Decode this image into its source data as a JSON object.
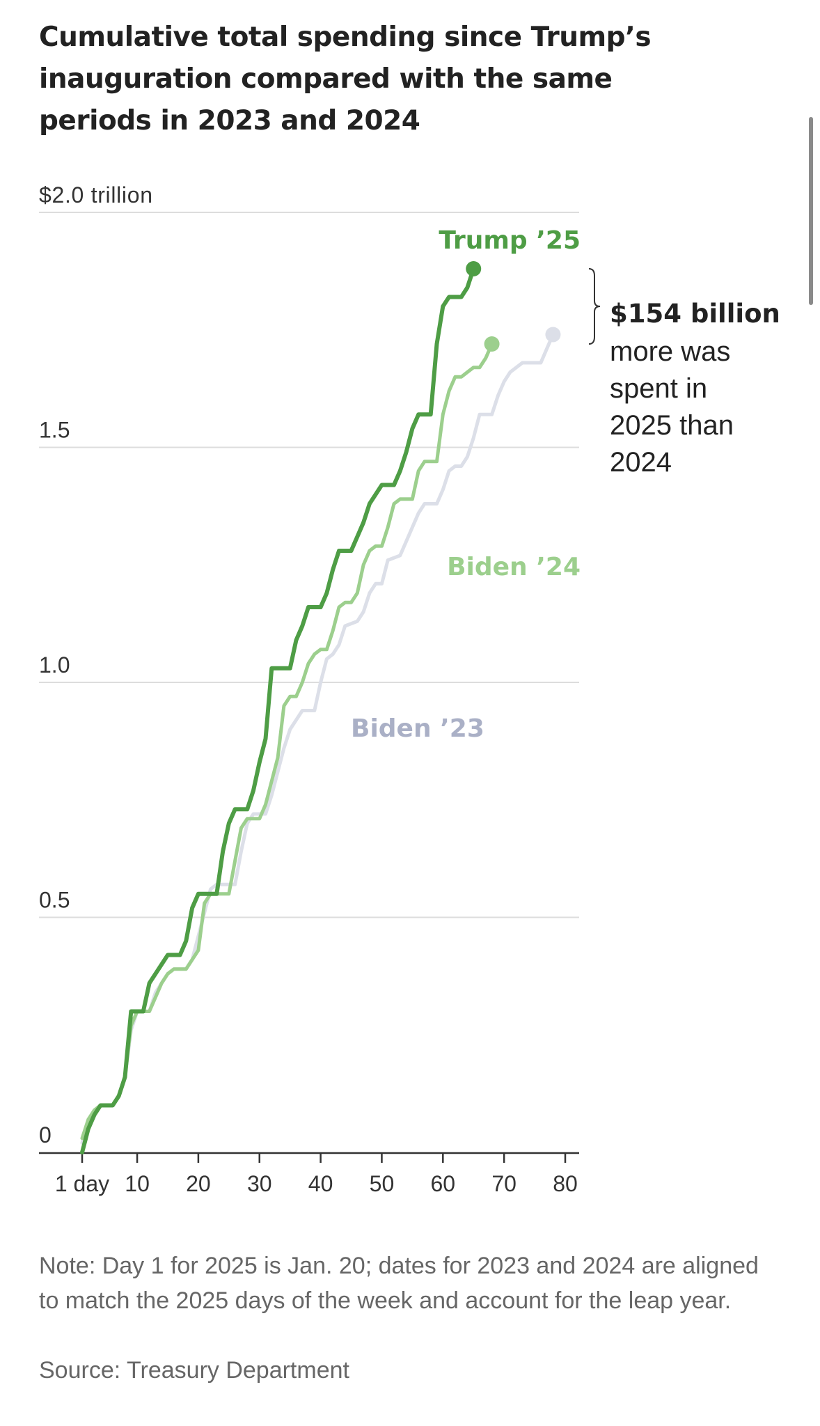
{
  "title": "Cumulative total spending since Trump’s inauguration compared with the same periods in 2023 and 2024",
  "note": "Note: Day 1 for 2025 is Jan. 20; dates for 2023 and 2024 are aligned to match the 2025 days of the week and account for the leap year.",
  "source": "Source: Treasury Department",
  "annotation": {
    "bold": "$154 billion",
    "lines": [
      "more was",
      "spent in",
      "2025 than",
      "2024"
    ]
  },
  "colors": {
    "trump": "#4e9d45",
    "biden24": "#9ccf8d",
    "biden23": "#dcdfe8",
    "biden23_label": "#aab0c6",
    "grid": "#dddddd",
    "axis": "#333333",
    "text": "#333333"
  },
  "chart_data": {
    "type": "line",
    "xlabel": "",
    "ylabel": "",
    "xlim": [
      1,
      80
    ],
    "ylim": [
      0,
      2.0
    ],
    "x_ticks": [
      {
        "value": 1,
        "label": "1 day"
      },
      {
        "value": 10,
        "label": "10"
      },
      {
        "value": 20,
        "label": "20"
      },
      {
        "value": 30,
        "label": "30"
      },
      {
        "value": 40,
        "label": "40"
      },
      {
        "value": 50,
        "label": "50"
      },
      {
        "value": 60,
        "label": "60"
      },
      {
        "value": 70,
        "label": "70"
      },
      {
        "value": 80,
        "label": "80"
      }
    ],
    "y_ticks": [
      {
        "value": 0,
        "label": "0"
      },
      {
        "value": 0.5,
        "label": "0.5"
      },
      {
        "value": 1.0,
        "label": "1.0"
      },
      {
        "value": 1.5,
        "label": "1.5"
      },
      {
        "value": 2.0,
        "label": "$2.0 trillion"
      }
    ],
    "grid": true,
    "series": [
      {
        "name": "Biden ’23",
        "color_key": "biden23",
        "points": [
          [
            1,
            0.02
          ],
          [
            2,
            0.06
          ],
          [
            3,
            0.09
          ],
          [
            4,
            0.1
          ],
          [
            6,
            0.1
          ],
          [
            7,
            0.12
          ],
          [
            8,
            0.16
          ],
          [
            9,
            0.26
          ],
          [
            10,
            0.3
          ],
          [
            12,
            0.3
          ],
          [
            13,
            0.34
          ],
          [
            15,
            0.38
          ],
          [
            16,
            0.39
          ],
          [
            18,
            0.39
          ],
          [
            19,
            0.41
          ],
          [
            22,
            0.56
          ],
          [
            23,
            0.57
          ],
          [
            26,
            0.57
          ],
          [
            27,
            0.64
          ],
          [
            28,
            0.7
          ],
          [
            29,
            0.72
          ],
          [
            31,
            0.72
          ],
          [
            32,
            0.76
          ],
          [
            34,
            0.86
          ],
          [
            35,
            0.9
          ],
          [
            37,
            0.94
          ],
          [
            39,
            0.94
          ],
          [
            40,
            1.0
          ],
          [
            41,
            1.05
          ],
          [
            42,
            1.06
          ],
          [
            43,
            1.08
          ],
          [
            44,
            1.12
          ],
          [
            46,
            1.13
          ],
          [
            47,
            1.15
          ],
          [
            48,
            1.19
          ],
          [
            49,
            1.21
          ],
          [
            50,
            1.21
          ],
          [
            51,
            1.26
          ],
          [
            53,
            1.27
          ],
          [
            55,
            1.33
          ],
          [
            56,
            1.36
          ],
          [
            57,
            1.38
          ],
          [
            59,
            1.38
          ],
          [
            60,
            1.41
          ],
          [
            61,
            1.45
          ],
          [
            62,
            1.46
          ],
          [
            63,
            1.46
          ],
          [
            64,
            1.48
          ],
          [
            65,
            1.52
          ],
          [
            66,
            1.57
          ],
          [
            68,
            1.57
          ],
          [
            69,
            1.61
          ],
          [
            70,
            1.64
          ],
          [
            71,
            1.66
          ],
          [
            73,
            1.68
          ],
          [
            76,
            1.68
          ],
          [
            77,
            1.71
          ],
          [
            78,
            1.74
          ]
        ]
      },
      {
        "name": "Biden ’24",
        "color_key": "biden24",
        "points": [
          [
            1,
            0.03
          ],
          [
            2,
            0.07
          ],
          [
            3,
            0.09
          ],
          [
            4,
            0.1
          ],
          [
            6,
            0.1
          ],
          [
            7,
            0.12
          ],
          [
            8,
            0.16
          ],
          [
            9,
            0.27
          ],
          [
            10,
            0.3
          ],
          [
            12,
            0.3
          ],
          [
            13,
            0.33
          ],
          [
            14,
            0.36
          ],
          [
            15,
            0.38
          ],
          [
            16,
            0.39
          ],
          [
            18,
            0.39
          ],
          [
            20,
            0.43
          ],
          [
            21,
            0.53
          ],
          [
            22,
            0.55
          ],
          [
            25,
            0.55
          ],
          [
            26,
            0.62
          ],
          [
            27,
            0.69
          ],
          [
            28,
            0.71
          ],
          [
            30,
            0.71
          ],
          [
            31,
            0.74
          ],
          [
            33,
            0.84
          ],
          [
            34,
            0.95
          ],
          [
            35,
            0.97
          ],
          [
            36,
            0.97
          ],
          [
            37,
            1.0
          ],
          [
            38,
            1.04
          ],
          [
            39,
            1.06
          ],
          [
            40,
            1.07
          ],
          [
            41,
            1.07
          ],
          [
            42,
            1.11
          ],
          [
            43,
            1.16
          ],
          [
            44,
            1.17
          ],
          [
            45,
            1.17
          ],
          [
            46,
            1.19
          ],
          [
            47,
            1.25
          ],
          [
            48,
            1.28
          ],
          [
            49,
            1.29
          ],
          [
            50,
            1.29
          ],
          [
            51,
            1.33
          ],
          [
            52,
            1.38
          ],
          [
            53,
            1.39
          ],
          [
            55,
            1.39
          ],
          [
            56,
            1.45
          ],
          [
            57,
            1.47
          ],
          [
            59,
            1.47
          ],
          [
            60,
            1.57
          ],
          [
            61,
            1.62
          ],
          [
            62,
            1.65
          ],
          [
            63,
            1.65
          ],
          [
            64,
            1.66
          ],
          [
            65,
            1.67
          ],
          [
            66,
            1.67
          ],
          [
            67,
            1.69
          ],
          [
            68,
            1.72
          ]
        ]
      },
      {
        "name": "Trump ’25",
        "color_key": "trump",
        "points": [
          [
            1,
            0.0
          ],
          [
            2,
            0.05
          ],
          [
            3,
            0.08
          ],
          [
            4,
            0.1
          ],
          [
            6,
            0.1
          ],
          [
            7,
            0.12
          ],
          [
            8,
            0.16
          ],
          [
            9,
            0.3
          ],
          [
            11,
            0.3
          ],
          [
            12,
            0.36
          ],
          [
            13,
            0.38
          ],
          [
            15,
            0.42
          ],
          [
            17,
            0.42
          ],
          [
            18,
            0.45
          ],
          [
            19,
            0.52
          ],
          [
            20,
            0.55
          ],
          [
            23,
            0.55
          ],
          [
            24,
            0.64
          ],
          [
            25,
            0.7
          ],
          [
            26,
            0.73
          ],
          [
            28,
            0.73
          ],
          [
            29,
            0.77
          ],
          [
            30,
            0.83
          ],
          [
            31,
            0.88
          ],
          [
            32,
            1.03
          ],
          [
            35,
            1.03
          ],
          [
            36,
            1.09
          ],
          [
            37,
            1.12
          ],
          [
            38,
            1.16
          ],
          [
            40,
            1.16
          ],
          [
            41,
            1.19
          ],
          [
            42,
            1.24
          ],
          [
            43,
            1.28
          ],
          [
            45,
            1.28
          ],
          [
            46,
            1.31
          ],
          [
            47,
            1.34
          ],
          [
            48,
            1.38
          ],
          [
            49,
            1.4
          ],
          [
            50,
            1.42
          ],
          [
            52,
            1.42
          ],
          [
            53,
            1.45
          ],
          [
            54,
            1.49
          ],
          [
            55,
            1.54
          ],
          [
            56,
            1.57
          ],
          [
            58,
            1.57
          ],
          [
            59,
            1.72
          ],
          [
            60,
            1.8
          ],
          [
            61,
            1.82
          ],
          [
            63,
            1.82
          ],
          [
            64,
            1.84
          ],
          [
            65,
            1.88
          ]
        ]
      }
    ],
    "annotations": [
      "$154 billion more was spent in 2025 than 2024"
    ]
  }
}
